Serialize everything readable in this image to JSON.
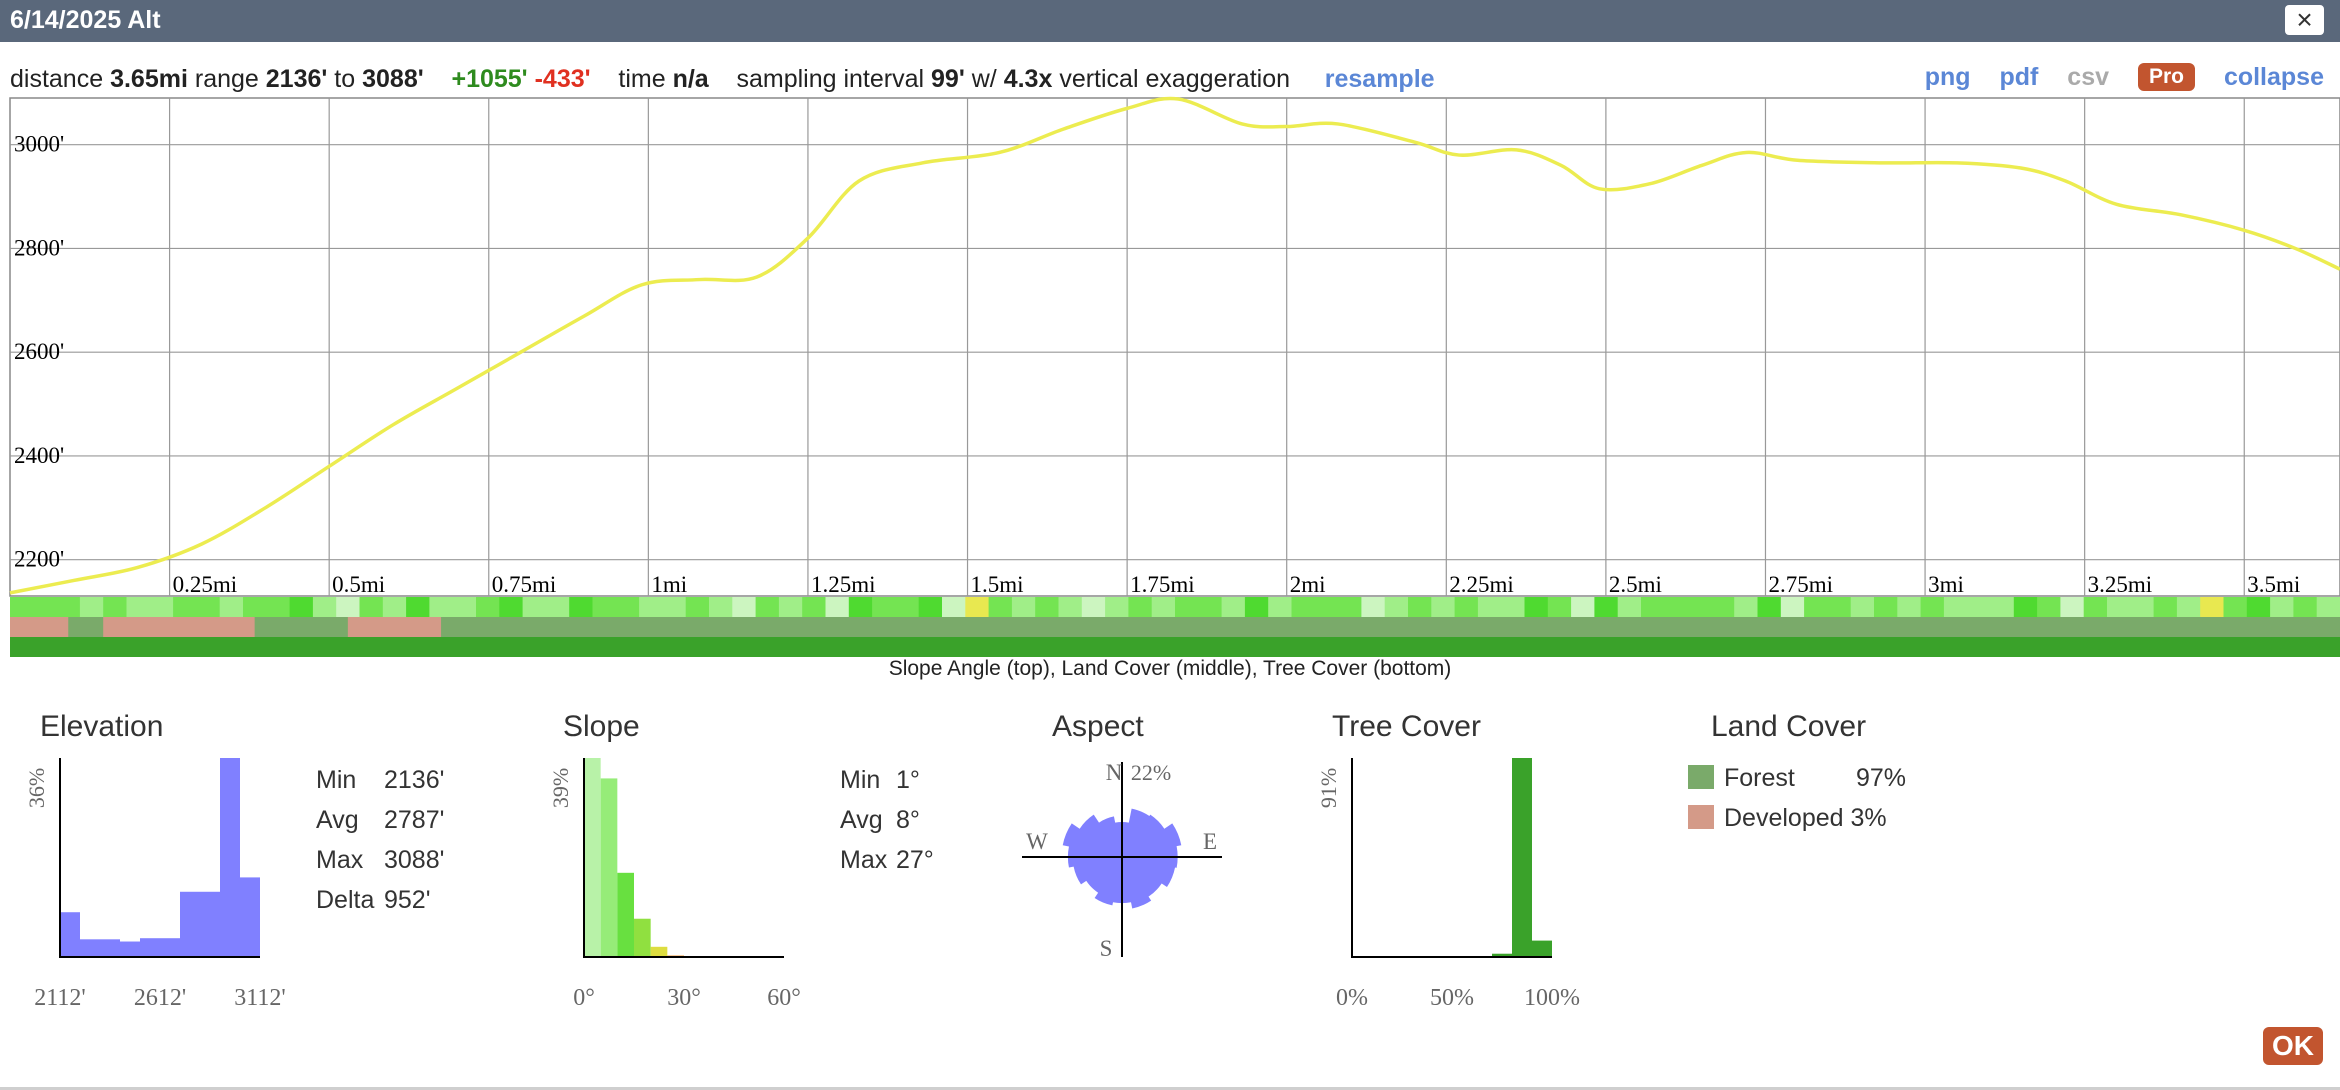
{
  "window": {
    "title": "6/14/2025 Alt",
    "close_label": "×"
  },
  "summary": {
    "distance_label": "distance",
    "distance": "3.65mi",
    "range_label": "range",
    "range_min": "2136'",
    "range_to": "to",
    "range_max": "3088'",
    "gain": "+1055'",
    "loss": "-433'",
    "time_label": "time",
    "time": "n/a",
    "sampling_label": "sampling interval",
    "sampling": "99'",
    "with_label": "w/",
    "exaggeration": "4.3x",
    "exaggeration_label": "vertical exaggeration",
    "resample": "resample"
  },
  "links": {
    "png": "png",
    "pdf": "pdf",
    "csv": "csv",
    "pro": "Pro",
    "collapse": "collapse"
  },
  "colors": {
    "profile_line": "#ecec50",
    "histogram_blue": "#8080ff",
    "forest": "#7aaa6a",
    "developed": "#d49a88",
    "tree_green": "#3aa22a",
    "gain_green": "#2e8b1e",
    "loss_red": "#e03020",
    "accent_orange": "#c2552f",
    "link_blue": "#5b87d6"
  },
  "profile_chart": {
    "type": "line",
    "x_unit": "mi",
    "y_unit": "ft",
    "xlim": [
      0,
      3.65
    ],
    "ylim": [
      2130,
      3090
    ],
    "x_ticks": [
      0.25,
      0.5,
      0.75,
      1,
      1.25,
      1.5,
      1.75,
      2,
      2.25,
      2.5,
      2.75,
      3,
      3.25,
      3.5
    ],
    "x_tick_labels": [
      "0.25mi",
      "0.5mi",
      "0.75mi",
      "1mi",
      "1.25mi",
      "1.5mi",
      "1.75mi",
      "2mi",
      "2.25mi",
      "2.5mi",
      "2.75mi",
      "3mi",
      "3.25mi",
      "3.5mi"
    ],
    "y_ticks": [
      2200,
      2400,
      2600,
      2800,
      3000
    ],
    "y_tick_labels": [
      "2200'",
      "2400'",
      "2600'",
      "2800'",
      "3000'"
    ],
    "grid": true,
    "points": [
      [
        0,
        2136
      ],
      [
        0.1,
        2160
      ],
      [
        0.2,
        2185
      ],
      [
        0.3,
        2230
      ],
      [
        0.4,
        2300
      ],
      [
        0.5,
        2380
      ],
      [
        0.6,
        2460
      ],
      [
        0.7,
        2530
      ],
      [
        0.8,
        2600
      ],
      [
        0.9,
        2670
      ],
      [
        0.99,
        2730
      ],
      [
        1.08,
        2740
      ],
      [
        1.17,
        2745
      ],
      [
        1.25,
        2820
      ],
      [
        1.33,
        2930
      ],
      [
        1.43,
        2965
      ],
      [
        1.55,
        2985
      ],
      [
        1.65,
        3030
      ],
      [
        1.75,
        3070
      ],
      [
        1.83,
        3088
      ],
      [
        1.93,
        3040
      ],
      [
        2.0,
        3035
      ],
      [
        2.08,
        3040
      ],
      [
        2.2,
        3005
      ],
      [
        2.27,
        2980
      ],
      [
        2.36,
        2990
      ],
      [
        2.43,
        2960
      ],
      [
        2.49,
        2915
      ],
      [
        2.57,
        2925
      ],
      [
        2.65,
        2960
      ],
      [
        2.72,
        2985
      ],
      [
        2.8,
        2970
      ],
      [
        2.93,
        2965
      ],
      [
        3.05,
        2965
      ],
      [
        3.15,
        2955
      ],
      [
        3.22,
        2930
      ],
      [
        3.3,
        2885
      ],
      [
        3.4,
        2865
      ],
      [
        3.5,
        2835
      ],
      [
        3.58,
        2800
      ],
      [
        3.65,
        2760
      ]
    ]
  },
  "strips": {
    "caption": "Slope Angle (top), Land Cover (middle), Tree Cover (bottom)",
    "slope_cells": [
      3,
      3,
      3,
      2,
      3,
      2,
      2,
      3,
      3,
      2,
      3,
      3,
      4,
      2,
      1,
      3,
      2,
      4,
      2,
      2,
      3,
      4,
      2,
      2,
      4,
      3,
      3,
      2,
      2,
      3,
      2,
      1,
      3,
      2,
      3,
      1,
      4,
      3,
      3,
      4,
      1,
      5,
      3,
      2,
      3,
      2,
      1,
      2,
      3,
      2,
      3,
      3,
      2,
      4,
      2,
      3,
      3,
      3,
      1,
      2,
      3,
      2,
      3,
      2,
      2,
      4,
      3,
      1,
      4,
      2,
      3,
      3,
      3,
      3,
      2,
      4,
      1,
      3,
      3,
      2,
      3,
      2,
      3,
      2,
      2,
      2,
      4,
      3,
      1,
      3,
      2,
      2,
      3,
      2,
      5,
      3,
      4,
      2,
      3,
      2
    ],
    "developed_ranges": [
      [
        0.0,
        0.025
      ],
      [
        0.04,
        0.105
      ],
      [
        0.145,
        0.185
      ]
    ]
  },
  "elevation": {
    "title": "Elevation",
    "y_max_label": "36%",
    "x_labels": [
      "2112'",
      "2612'",
      "3112'"
    ],
    "chart_data": {
      "type": "bar",
      "x": [
        2162,
        2262,
        2362,
        2462,
        2562,
        2662,
        2762,
        2862,
        2962,
        3062
      ],
      "values": [
        8.1,
        3.2,
        3.2,
        2.8,
        3.4,
        3.4,
        11.8,
        11.8,
        36.0,
        14.4
      ],
      "ylim": [
        0,
        36
      ],
      "xlim": [
        2112,
        3112
      ]
    },
    "stats": [
      {
        "label": "Min",
        "value": "2136'"
      },
      {
        "label": "Avg",
        "value": "2787'"
      },
      {
        "label": "Max",
        "value": "3088'"
      },
      {
        "label": "Delta",
        "value": "952'"
      }
    ]
  },
  "slope": {
    "title": "Slope",
    "y_max_label": "39%",
    "x_labels": [
      "0°",
      "30°",
      "60°"
    ],
    "chart_data": {
      "type": "bar",
      "x": [
        2.5,
        7.5,
        12.5,
        17.5,
        22.5,
        27.5
      ],
      "values": [
        39,
        35,
        16.5,
        7.5,
        2.0,
        0.3
      ],
      "colors": [
        "#b8f2a8",
        "#96ec78",
        "#68e040",
        "#90e040",
        "#dddd40",
        "#f2a040"
      ],
      "ylim": [
        0,
        39
      ],
      "xlim": [
        0,
        60
      ]
    },
    "stats": [
      {
        "label": "Min",
        "value": "1°"
      },
      {
        "label": "Avg",
        "value": "8°"
      },
      {
        "label": "Max",
        "value": "27°"
      }
    ]
  },
  "aspect": {
    "title": "Aspect",
    "max_label": "22%",
    "directions": {
      "n": "N",
      "e": "E",
      "s": "S",
      "w": "W"
    },
    "chart_data": {
      "type": "rose",
      "unit": "percent",
      "rmax": 22,
      "sectors_deg": [
        0,
        22.5,
        45,
        67.5,
        90,
        112.5,
        135,
        157.5,
        180,
        202.5,
        225,
        247.5,
        270,
        292.5,
        315,
        337.5
      ],
      "values": [
        11,
        15.5,
        16,
        19,
        17.5,
        17,
        15,
        16.5,
        14.5,
        15.5,
        13.5,
        15.5,
        17,
        19,
        16,
        13
      ]
    }
  },
  "tree_cover": {
    "title": "Tree Cover",
    "y_max_label": "91%",
    "x_labels": [
      "0%",
      "50%",
      "100%"
    ],
    "chart_data": {
      "type": "bar",
      "x": [
        75,
        85,
        95
      ],
      "values": [
        1.5,
        91,
        7.5
      ],
      "ylim": [
        0,
        91
      ],
      "xlim": [
        0,
        100
      ]
    }
  },
  "land_cover": {
    "title": "Land Cover",
    "items": [
      {
        "label": "Forest",
        "value": "97%",
        "color": "#7aaa6a"
      },
      {
        "label": "Developed",
        "value": "3%",
        "color": "#d49a88"
      }
    ]
  },
  "ok_label": "OK"
}
